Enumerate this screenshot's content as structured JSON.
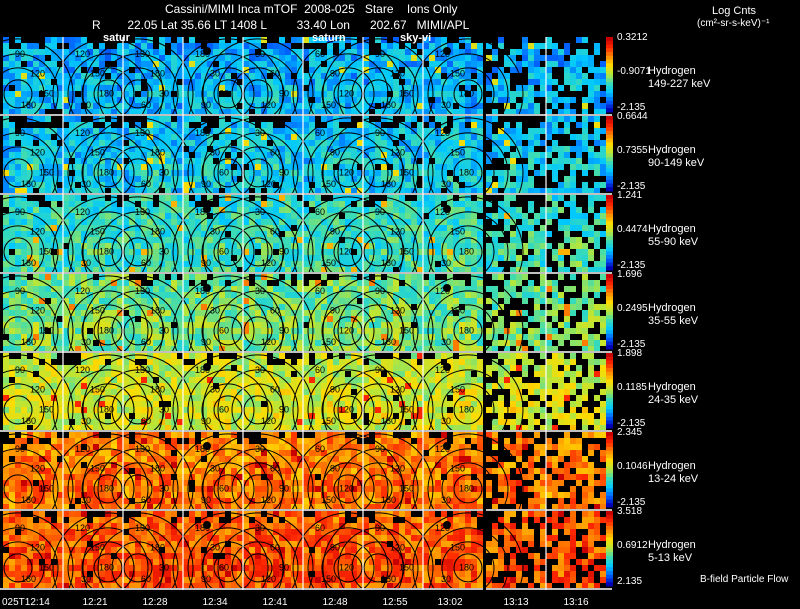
{
  "header": {
    "title": "Cassini/MIMI Inca mTOF  2008-025   Stare    Ions Only",
    "line2": "R        22.05 Lat 35.66 LT 1408 L         33.40 Lon      202.67   MIMI/APL",
    "overlays": [
      "satur",
      "saturn",
      "sky-vi"
    ],
    "units_title": "Log Cnts",
    "units_sub": "(cm²-sr-s-keV)⁻¹"
  },
  "footer_note": "B-field Particle Flow",
  "chart_data": {
    "type": "heatmap",
    "title": "Cassini/MIMI Inca mTOF 2008-025 Stare Ions Only",
    "time_labels": [
      "025T12:14",
      "12:21",
      "12:28",
      "12:34",
      "12:41",
      "12:48",
      "12:55",
      "13:02",
      "13:13",
      "13:16"
    ],
    "contour_labels": [
      "30",
      "60",
      "90",
      "120",
      "150",
      "180"
    ],
    "colormap": [
      "#0000b4",
      "#0064ff",
      "#00c8ff",
      "#3cdcb4",
      "#b4e63c",
      "#ffdc00",
      "#ff8c00",
      "#ff2800",
      "#c80000"
    ],
    "rows": [
      {
        "species": "Hydrogen",
        "energy": "149-227 keV",
        "cmax": "0.3212",
        "cmid": "-0.9071",
        "cmin": "-2.135",
        "level": 0.22
      },
      {
        "species": "Hydrogen",
        "energy": "90-149 keV",
        "cmax": "0.6644",
        "cmid": "0.7355",
        "cmin": "-2.135",
        "level": 0.26
      },
      {
        "species": "Hydrogen",
        "energy": "55-90 keV",
        "cmax": "1.241",
        "cmid": "0.4474",
        "cmin": "-2.135",
        "level": 0.34
      },
      {
        "species": "Hydrogen",
        "energy": "35-55 keV",
        "cmax": "1.696",
        "cmid": "0.2495",
        "cmin": "-2.135",
        "level": 0.42
      },
      {
        "species": "Hydrogen",
        "energy": "24-35 keV",
        "cmax": "1.898",
        "cmid": "0.1185",
        "cmin": "-2.135",
        "level": 0.53
      },
      {
        "species": "Hydrogen",
        "energy": "13-24 keV",
        "cmax": "2.345",
        "cmid": "0.1046",
        "cmin": "-2.135",
        "level": 0.75
      },
      {
        "species": "Hydrogen",
        "energy": "5-13 keV",
        "cmax": "3.518",
        "cmid": "0.6912",
        "cmin": "2.135",
        "level": 0.8
      }
    ]
  }
}
